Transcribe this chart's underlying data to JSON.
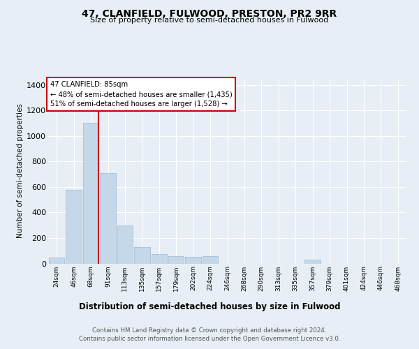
{
  "title": "47, CLANFIELD, FULWOOD, PRESTON, PR2 9RR",
  "subtitle": "Size of property relative to semi-detached houses in Fulwood",
  "xlabel": "Distribution of semi-detached houses by size in Fulwood",
  "ylabel": "Number of semi-detached properties",
  "footer_line1": "Contains HM Land Registry data © Crown copyright and database right 2024.",
  "footer_line2": "Contains public sector information licensed under the Open Government Licence v3.0.",
  "annotation_title": "47 CLANFIELD: 85sqm",
  "annotation_line1": "← 48% of semi-detached houses are smaller (1,435)",
  "annotation_line2": "51% of semi-detached houses are larger (1,528) →",
  "bin_labels": [
    "24sqm",
    "46sqm",
    "68sqm",
    "91sqm",
    "113sqm",
    "135sqm",
    "157sqm",
    "179sqm",
    "202sqm",
    "224sqm",
    "246sqm",
    "268sqm",
    "290sqm",
    "313sqm",
    "335sqm",
    "357sqm",
    "379sqm",
    "401sqm",
    "424sqm",
    "446sqm",
    "468sqm"
  ],
  "bar_values": [
    45,
    580,
    1105,
    710,
    300,
    130,
    75,
    55,
    50,
    55,
    0,
    0,
    0,
    0,
    0,
    30,
    0,
    0,
    0,
    0,
    0
  ],
  "bar_color": "#c5d8ea",
  "bar_edge_color": "#a8c0d6",
  "marker_color": "#cc0000",
  "marker_bin_index": 2,
  "ylim": [
    0,
    1450
  ],
  "yticks": [
    0,
    200,
    400,
    600,
    800,
    1000,
    1200,
    1400
  ],
  "bg_color": "#e8eef5",
  "plot_bg_color": "#e8eef5",
  "grid_color": "#ffffff",
  "annotation_box_color": "#ffffff",
  "annotation_border_color": "#cc0000"
}
